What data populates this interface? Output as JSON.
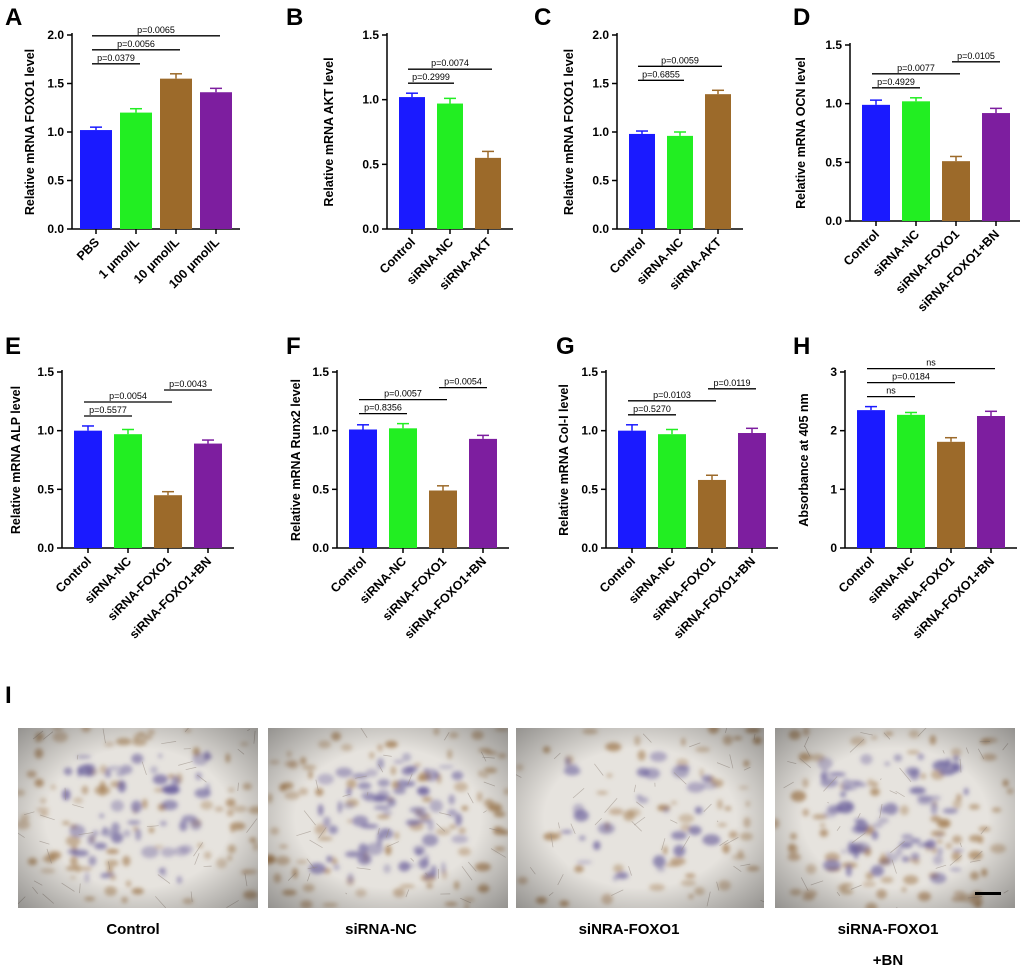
{
  "panel_i": {
    "letter": "I",
    "images": [
      {
        "caption": "Control"
      },
      {
        "caption": "siRNA-NC"
      },
      {
        "caption": "siNRA-FOXO1"
      },
      {
        "caption": "siRNA-FOXO1\n+BN"
      }
    ]
  },
  "chart_data": [
    {
      "letter": "A",
      "type": "bar",
      "ylabel": "Relative mRNA FOXO1 level",
      "categories": [
        "PBS",
        "1 μmol/L",
        "10 μmol/L",
        "100 μmol/L"
      ],
      "values": [
        1.02,
        1.2,
        1.55,
        1.41
      ],
      "errors": [
        0.03,
        0.04,
        0.05,
        0.04
      ],
      "colors": [
        "#1a1aff",
        "#22ee22",
        "#9c6a2a",
        "#7d1e9f"
      ],
      "ylim": [
        0,
        2.0
      ],
      "ticks": [
        0.0,
        0.5,
        1.0,
        1.5,
        2.0
      ],
      "comparisons": [
        {
          "a": 0,
          "b": 1,
          "label": "p=0.0379"
        },
        {
          "a": 0,
          "b": 2,
          "label": "p=0.0056"
        },
        {
          "a": 0,
          "b": 3,
          "label": "p=0.0065"
        }
      ]
    },
    {
      "letter": "B",
      "type": "bar",
      "ylabel": "Relative mRNA AKT level",
      "categories": [
        "Control",
        "siRNA-NC",
        "siRNA-AKT"
      ],
      "values": [
        1.02,
        0.97,
        0.55
      ],
      "errors": [
        0.03,
        0.04,
        0.05
      ],
      "colors": [
        "#1a1aff",
        "#22ee22",
        "#9c6a2a"
      ],
      "ylim": [
        0,
        1.5
      ],
      "ticks": [
        0.0,
        0.5,
        1.0,
        1.5
      ],
      "comparisons": [
        {
          "a": 0,
          "b": 1,
          "label": "p=0.2999"
        },
        {
          "a": 0,
          "b": 2,
          "label": "p=0.0074"
        }
      ]
    },
    {
      "letter": "C",
      "type": "bar",
      "ylabel": "Relative mRNA FOXO1 level",
      "categories": [
        "Control",
        "siRNA-NC",
        "siRNA-AKT"
      ],
      "values": [
        0.98,
        0.96,
        1.39
      ],
      "errors": [
        0.03,
        0.04,
        0.04
      ],
      "colors": [
        "#1a1aff",
        "#22ee22",
        "#9c6a2a"
      ],
      "ylim": [
        0,
        2.0
      ],
      "ticks": [
        0.0,
        0.5,
        1.0,
        1.5,
        2.0
      ],
      "comparisons": [
        {
          "a": 0,
          "b": 1,
          "label": "p=0.6855"
        },
        {
          "a": 0,
          "b": 2,
          "label": "p=0.0059"
        }
      ]
    },
    {
      "letter": "D",
      "type": "bar",
      "ylabel": "Relative mRNA OCN level",
      "categories": [
        "Control",
        "siRNA-NC",
        "siRNA-FOXO1",
        "siRNA-FOXO1+BN"
      ],
      "values": [
        0.99,
        1.02,
        0.51,
        0.92
      ],
      "errors": [
        0.04,
        0.03,
        0.04,
        0.04
      ],
      "colors": [
        "#1a1aff",
        "#22ee22",
        "#9c6a2a",
        "#7d1e9f"
      ],
      "ylim": [
        0,
        1.5
      ],
      "ticks": [
        0.0,
        0.5,
        1.0,
        1.5
      ],
      "comparisons": [
        {
          "a": 0,
          "b": 1,
          "label": "p=0.4929"
        },
        {
          "a": 0,
          "b": 2,
          "label": "p=0.0077"
        },
        {
          "a": 2,
          "b": 3,
          "label": "p=0.0105",
          "level": 1
        }
      ]
    },
    {
      "letter": "E",
      "type": "bar",
      "ylabel": "Relative mRNA ALP level",
      "categories": [
        "Control",
        "siRNA-NC",
        "siRNA-FOXO1",
        "siRNA-FOXO1+BN"
      ],
      "values": [
        1.0,
        0.97,
        0.45,
        0.89
      ],
      "errors": [
        0.04,
        0.04,
        0.03,
        0.03
      ],
      "colors": [
        "#1a1aff",
        "#22ee22",
        "#9c6a2a",
        "#7d1e9f"
      ],
      "ylim": [
        0,
        1.5
      ],
      "ticks": [
        0.0,
        0.5,
        1.0,
        1.5
      ],
      "comparisons": [
        {
          "a": 0,
          "b": 1,
          "label": "p=0.5577"
        },
        {
          "a": 0,
          "b": 2,
          "label": "p=0.0054"
        },
        {
          "a": 2,
          "b": 3,
          "label": "p=0.0043",
          "level": 1
        }
      ]
    },
    {
      "letter": "F",
      "type": "bar",
      "ylabel": "Relative mRNA Runx2 level",
      "categories": [
        "Control",
        "siRNA-NC",
        "siRNA-FOXO1",
        "siRNA-FOXO1+BN"
      ],
      "values": [
        1.01,
        1.02,
        0.49,
        0.93
      ],
      "errors": [
        0.04,
        0.04,
        0.04,
        0.03
      ],
      "colors": [
        "#1a1aff",
        "#22ee22",
        "#9c6a2a",
        "#7d1e9f"
      ],
      "ylim": [
        0,
        1.5
      ],
      "ticks": [
        0.0,
        0.5,
        1.0,
        1.5
      ],
      "comparisons": [
        {
          "a": 0,
          "b": 1,
          "label": "p=0.8356"
        },
        {
          "a": 0,
          "b": 2,
          "label": "p=0.0057"
        },
        {
          "a": 2,
          "b": 3,
          "label": "p=0.0054",
          "level": 1
        }
      ]
    },
    {
      "letter": "G",
      "type": "bar",
      "ylabel": "Relative mRNA Col-I level",
      "categories": [
        "Control",
        "siRNA-NC",
        "siRNA-FOXO1",
        "siRNA-FOXO1+BN"
      ],
      "values": [
        1.0,
        0.97,
        0.58,
        0.98
      ],
      "errors": [
        0.05,
        0.04,
        0.04,
        0.04
      ],
      "colors": [
        "#1a1aff",
        "#22ee22",
        "#9c6a2a",
        "#7d1e9f"
      ],
      "ylim": [
        0,
        1.5
      ],
      "ticks": [
        0.0,
        0.5,
        1.0,
        1.5
      ],
      "comparisons": [
        {
          "a": 0,
          "b": 1,
          "label": "p=0.5270"
        },
        {
          "a": 0,
          "b": 2,
          "label": "p=0.0103"
        },
        {
          "a": 2,
          "b": 3,
          "label": "p=0.0119",
          "level": 1
        }
      ]
    },
    {
      "letter": "H",
      "type": "bar",
      "ylabel": "Absorbance at 405 nm",
      "categories": [
        "Control",
        "siRNA-NC",
        "siRNA-FOXO1",
        "siRNA-FOXO1+BN"
      ],
      "values": [
        2.35,
        2.27,
        1.81,
        2.25
      ],
      "errors": [
        0.06,
        0.04,
        0.07,
        0.08
      ],
      "colors": [
        "#1a1aff",
        "#22ee22",
        "#9c6a2a",
        "#7d1e9f"
      ],
      "ylim": [
        0,
        3
      ],
      "ticks": [
        0,
        1,
        2,
        3
      ],
      "comparisons": [
        {
          "a": 0,
          "b": 1,
          "label": "ns"
        },
        {
          "a": 0,
          "b": 2,
          "label": "p=0.0184"
        },
        {
          "a": 0,
          "b": 3,
          "label": "ns"
        }
      ]
    }
  ]
}
